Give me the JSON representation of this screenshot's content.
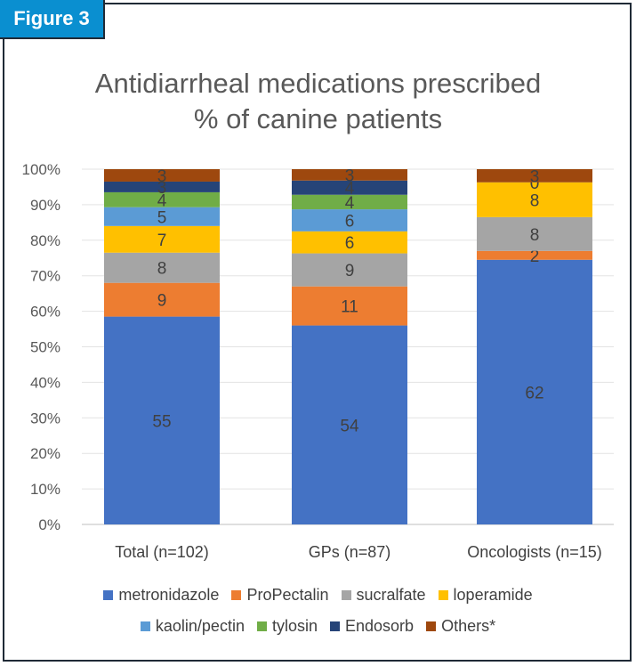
{
  "figure_label": "Figure 3",
  "chart_data": {
    "type": "bar",
    "stacked": true,
    "title_line1": "Antidiarrheal medications prescribed",
    "title_line2": "% of canine patients",
    "categories": [
      "Total (n=102)",
      "GPs (n=87)",
      "Oncologists (n=15)"
    ],
    "ylim": [
      0,
      100
    ],
    "yticks": [
      "0%",
      "10%",
      "20%",
      "30%",
      "40%",
      "50%",
      "60%",
      "70%",
      "80%",
      "90%",
      "100%"
    ],
    "legend_position": "bottom",
    "series": [
      {
        "name": "metronidazole",
        "color": "#4472c4",
        "values": [
          55,
          54,
          62
        ],
        "percent": [
          58.5,
          56.0,
          74.5
        ]
      },
      {
        "name": "ProPectalin",
        "color": "#ed7d31",
        "values": [
          9,
          11,
          2
        ],
        "percent": [
          9.5,
          11.0,
          2.5
        ]
      },
      {
        "name": "sucralfate",
        "color": "#a5a5a5",
        "values": [
          8,
          9,
          8
        ],
        "percent": [
          8.5,
          9.3,
          9.5
        ]
      },
      {
        "name": "loperamide",
        "color": "#ffc000",
        "values": [
          7,
          6,
          8
        ],
        "percent": [
          7.5,
          6.2,
          9.8
        ]
      },
      {
        "name": "kaolin/pectin",
        "color": "#5b9bd5",
        "values": [
          5,
          6,
          0
        ],
        "percent": [
          5.3,
          6.2,
          0
        ]
      },
      {
        "name": "tylosin",
        "color": "#70ad47",
        "values": [
          4,
          4,
          0
        ],
        "percent": [
          4.2,
          4.1,
          0
        ]
      },
      {
        "name": "Endosorb",
        "color": "#264478",
        "values": [
          3,
          4,
          0
        ],
        "percent": [
          3.0,
          4.0,
          0
        ]
      },
      {
        "name": "Others*",
        "color": "#9e480e",
        "values": [
          3,
          3,
          3
        ],
        "percent": [
          3.5,
          3.2,
          3.7
        ]
      }
    ]
  }
}
